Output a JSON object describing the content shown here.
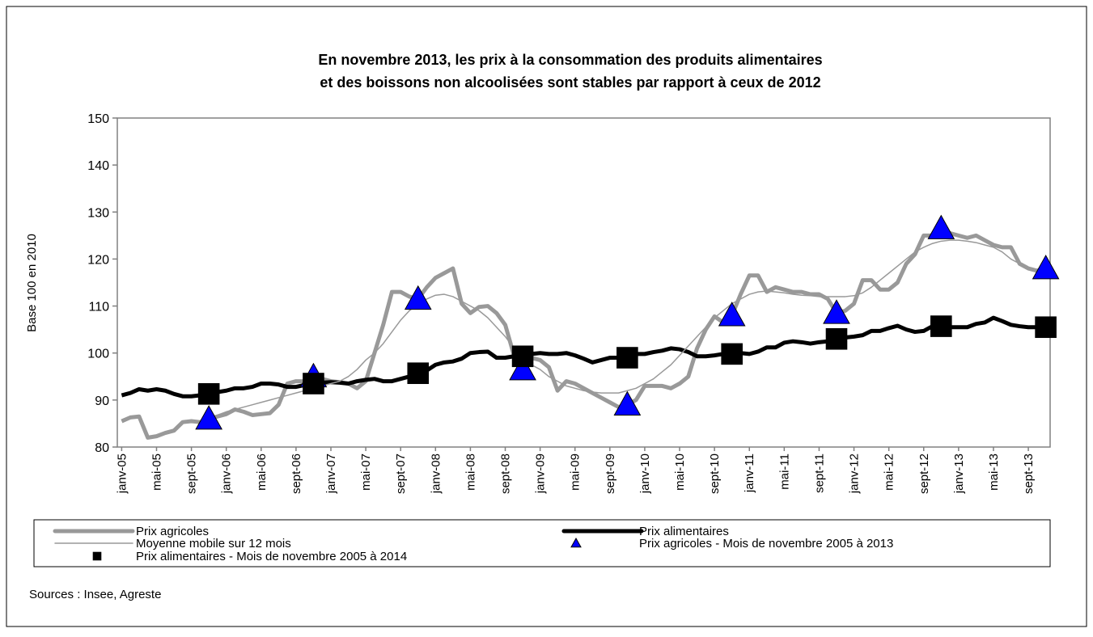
{
  "chart_data": {
    "type": "line",
    "title": [
      "En novembre 2013, les prix à la consommation des produits alimentaires",
      "et des boissons non alcoolisées sont stables par rapport à ceux de 2012"
    ],
    "y_label": "Base 100 en 2010",
    "source": "Sources : Insee, Agreste",
    "ylim": [
      80,
      150
    ],
    "yticks": [
      80,
      90,
      100,
      110,
      120,
      130,
      140,
      150
    ],
    "grid": false,
    "categories": [
      "janv-05",
      null,
      null,
      null,
      "mai-05",
      null,
      null,
      null,
      "sept-05",
      null,
      null,
      null,
      "janv-06",
      null,
      null,
      null,
      "mai-06",
      null,
      null,
      null,
      "sept-06",
      null,
      null,
      null,
      "janv-07",
      null,
      null,
      null,
      "mai-07",
      null,
      null,
      null,
      "sept-07",
      null,
      null,
      null,
      "janv-08",
      null,
      null,
      null,
      "mai-08",
      null,
      null,
      null,
      "sept-08",
      null,
      null,
      null,
      "janv-09",
      null,
      null,
      null,
      "mai-09",
      null,
      null,
      null,
      "sept-09",
      null,
      null,
      null,
      "janv-10",
      null,
      null,
      null,
      "mai-10",
      null,
      null,
      null,
      "sept-10",
      null,
      null,
      null,
      "janv-11",
      null,
      null,
      null,
      "mai-11",
      null,
      null,
      null,
      "sept-11",
      null,
      null,
      null,
      "janv-12",
      null,
      null,
      null,
      "mai-12",
      null,
      null,
      null,
      "sept-12",
      null,
      null,
      null,
      "janv-13",
      null,
      null,
      null,
      "mai-13",
      null,
      null,
      null,
      "sept-13",
      null,
      null
    ],
    "series": [
      {
        "name": "Prix agricoles",
        "color": "#999999",
        "line_width": 5,
        "values": [
          85.5,
          86.3,
          86.5,
          82,
          82.3,
          83,
          83.5,
          85.3,
          85.5,
          85.3,
          86,
          86.5,
          87,
          88,
          87.5,
          86.8,
          87,
          87.2,
          89,
          93.5,
          94,
          94,
          95,
          94.5,
          94,
          93.8,
          93.5,
          92.5,
          94,
          100,
          106,
          113,
          113,
          112,
          111.5,
          114,
          116,
          117,
          118,
          110.5,
          108.5,
          109.8,
          110,
          108.5,
          106,
          99.5,
          96.5,
          99,
          98.5,
          97,
          92,
          94,
          93.5,
          92.5,
          91.5,
          90.5,
          89.5,
          88.5,
          89,
          90,
          93,
          93,
          93,
          92.5,
          93.5,
          95,
          101,
          105,
          107.8,
          106.5,
          108,
          112.5,
          116.5,
          116.5,
          113,
          114,
          113.5,
          113,
          113,
          112.5,
          112.5,
          111.5,
          108.5,
          109,
          110.5,
          115.5,
          115.5,
          113.5,
          113.5,
          115,
          119,
          121,
          125,
          125,
          126.5,
          125.5,
          125,
          124.5,
          125,
          124,
          123,
          122.5,
          122.5,
          119,
          118,
          117.5,
          118
        ]
      },
      {
        "name": "Prix alimentaires",
        "color": "#000000",
        "line_width": 5,
        "values": [
          91,
          91.5,
          92.3,
          92,
          92.3,
          92,
          91.3,
          90.8,
          90.8,
          91,
          91.3,
          91.7,
          92,
          92.5,
          92.5,
          92.8,
          93.5,
          93.5,
          93.3,
          92.8,
          92.8,
          93.2,
          93.5,
          93.7,
          93.8,
          93.7,
          93.5,
          94,
          94.3,
          94.5,
          94,
          94,
          94.5,
          95,
          95.7,
          96.3,
          97.5,
          98,
          98.2,
          98.8,
          100,
          100.2,
          100.3,
          99,
          99,
          99.3,
          99.3,
          99.8,
          100,
          99.8,
          99.8,
          100,
          99.5,
          98.8,
          98,
          98.5,
          99,
          99,
          99,
          99.8,
          99.8,
          100.2,
          100.5,
          101,
          100.8,
          100.2,
          99.3,
          99.3,
          99.5,
          99.8,
          99.8,
          100,
          99.8,
          100.3,
          101.2,
          101.2,
          102.2,
          102.5,
          102.3,
          102,
          102.3,
          102.5,
          103,
          103.3,
          103.5,
          103.8,
          104.7,
          104.7,
          105.3,
          105.8,
          105,
          104.5,
          104.7,
          105.7,
          105.7,
          105.5,
          105.5,
          105.5,
          106.2,
          106.5,
          107.5,
          106.8,
          106,
          105.7,
          105.5,
          105.5,
          105.5
        ]
      },
      {
        "name": "Moyenne mobile sur 12 mois",
        "color": "#999999",
        "line_width": 1.5,
        "values": [
          null,
          null,
          null,
          null,
          null,
          null,
          null,
          null,
          null,
          null,
          null,
          86.8,
          87.5,
          88,
          88.5,
          89,
          89.5,
          90,
          90.5,
          91,
          91.5,
          92,
          92.5,
          93,
          93.5,
          94,
          95,
          96.5,
          98.5,
          100,
          102,
          104.5,
          107,
          109,
          110.5,
          111.5,
          112.3,
          112.5,
          112,
          111,
          110,
          109,
          107.5,
          105.5,
          103.5,
          101,
          99,
          97.5,
          96.5,
          95,
          94,
          93,
          92.5,
          92,
          91.7,
          91.5,
          91.5,
          91.5,
          92,
          92.5,
          93.5,
          94.5,
          96,
          97.5,
          99.5,
          101.5,
          103.5,
          105.5,
          107.5,
          109,
          110.5,
          111.5,
          112.5,
          113,
          113.2,
          113,
          112.8,
          112.5,
          112.3,
          112.2,
          112,
          112,
          112,
          112,
          112.2,
          112.8,
          114,
          115.5,
          117,
          118.5,
          120,
          121.5,
          122.5,
          123.3,
          123.8,
          124,
          124,
          123.8,
          123.5,
          123,
          122.5,
          121.5,
          120,
          119,
          118,
          117.5,
          117.5
        ]
      },
      {
        "name": "Prix agricoles - Mois de novembre 2005 à 2013",
        "color": "#0000ff",
        "marker": "triangle",
        "values": [
          null,
          null,
          null,
          null,
          null,
          null,
          null,
          null,
          null,
          null,
          86,
          null,
          null,
          null,
          null,
          null,
          null,
          null,
          null,
          null,
          null,
          null,
          95,
          null,
          null,
          null,
          null,
          null,
          null,
          null,
          null,
          null,
          null,
          null,
          111.5,
          null,
          null,
          null,
          null,
          null,
          null,
          null,
          null,
          null,
          null,
          null,
          96.5,
          null,
          null,
          null,
          null,
          null,
          null,
          null,
          null,
          null,
          null,
          null,
          89,
          null,
          null,
          null,
          null,
          null,
          null,
          null,
          null,
          null,
          null,
          null,
          108,
          null,
          null,
          null,
          null,
          null,
          null,
          null,
          null,
          null,
          null,
          null,
          108.5,
          null,
          null,
          null,
          null,
          null,
          null,
          null,
          null,
          null,
          null,
          null,
          126.5,
          null,
          null,
          null,
          null,
          null,
          null,
          null,
          null,
          null,
          null,
          null,
          118
        ]
      },
      {
        "name": "Prix alimentaires - Mois de novembre 2005 à 2014",
        "color": "#000000",
        "marker": "square",
        "values": [
          null,
          null,
          null,
          null,
          null,
          null,
          null,
          null,
          null,
          null,
          91.3,
          null,
          null,
          null,
          null,
          null,
          null,
          null,
          null,
          null,
          null,
          null,
          93.5,
          null,
          null,
          null,
          null,
          null,
          null,
          null,
          null,
          null,
          null,
          null,
          95.7,
          null,
          null,
          null,
          null,
          null,
          null,
          null,
          null,
          null,
          null,
          null,
          99.3,
          null,
          null,
          null,
          null,
          null,
          null,
          null,
          null,
          null,
          null,
          null,
          99,
          null,
          null,
          null,
          null,
          null,
          null,
          null,
          null,
          null,
          null,
          null,
          99.8,
          null,
          null,
          null,
          null,
          null,
          null,
          null,
          null,
          null,
          null,
          null,
          103,
          null,
          null,
          null,
          null,
          null,
          null,
          null,
          null,
          null,
          null,
          null,
          105.7,
          null,
          null,
          null,
          null,
          null,
          null,
          null,
          null,
          null,
          null,
          null,
          105.5
        ]
      }
    ]
  }
}
